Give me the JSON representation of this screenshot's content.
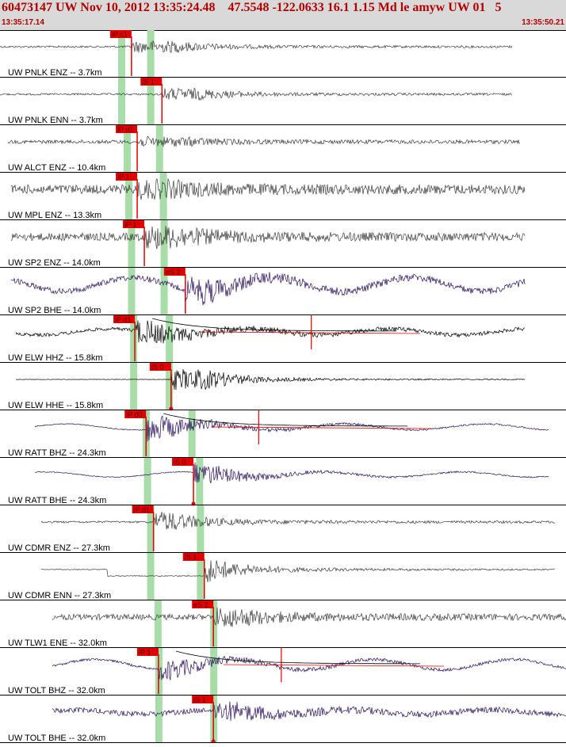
{
  "header": {
    "title": "60473147 UW Nov 10, 2012 13:35:24.48    47.5548 -122.0633 16.1 1.15 Md le amyw UW 01   5",
    "start_time": "13:35:17.14",
    "end_time": "13:35:50.21"
  },
  "colors": {
    "header_bg": "#d9d9d9",
    "header_text": "#b00000",
    "trace_dark": "#3c3c3c",
    "trace_purple": "#2a0f5c",
    "trace_black": "#000000",
    "pick": "#e00000",
    "pick_window": "#a8dca8",
    "divider": "#000000"
  },
  "traces": [
    {
      "label": "UW PNLK ENZ -- 3.7km",
      "style": "dark",
      "amp": 7,
      "noise": 0.35,
      "xs": 0,
      "xe": 646,
      "pick": {
        "label": "iP c1",
        "t": 0.2323,
        "type": "P"
      },
      "windows": [
        0.2142,
        0.2656
      ],
      "env": 5.5
    },
    {
      "label": "UW PNLK ENN -- 3.7km",
      "style": "dark",
      "amp": 7,
      "noise": 0.35,
      "xs": 0,
      "xe": 646,
      "pick": {
        "label": "iS 1",
        "t": 0.2861,
        "type": "S"
      },
      "windows": [
        0.2142,
        0.2656
      ],
      "env": 4.5
    },
    {
      "label": "UW ALCT ENZ -- 10.4km",
      "style": "dark",
      "amp": 6,
      "noise": 0.75,
      "xs": 10,
      "xe": 656,
      "pick": {
        "label": "iP d1",
        "t": 0.2424,
        "type": "P"
      },
      "windows": [
        0.2241,
        0.2811
      ],
      "env": 4.5
    },
    {
      "label": "UW MPL ENZ -- 13.3km",
      "style": "dark",
      "amp": 12,
      "noise": 0.95,
      "xs": 14,
      "xe": 662,
      "pick": {
        "label": "iP 1",
        "t": 0.2424,
        "type": "P"
      },
      "windows": [
        0.227,
        0.288
      ],
      "env": 2.5
    },
    {
      "label": "UW SP2 ENZ -- 14.0km",
      "style": "dark",
      "amp": 14,
      "noise": 0.7,
      "xs": 14,
      "xe": 662,
      "pick": {
        "label": "iP 1",
        "t": 0.255,
        "type": "P"
      },
      "windows": [
        0.2318,
        0.2893
      ],
      "env": 3.0
    },
    {
      "label": "UW SP2 BHE -- 14.0km",
      "style": "purple",
      "amp": 16,
      "noise": 0.45,
      "xs": 14,
      "xe": 662,
      "pick": {
        "label": "eS 2",
        "t": 0.3275,
        "type": "S"
      },
      "windows": [
        0.2318,
        0.2893
      ],
      "env": 2.5,
      "wave": 1
    },
    {
      "label": "UW ELW HHZ -- 15.8km",
      "style": "black",
      "amp": 14,
      "noise": 0.3,
      "xs": 20,
      "xe": 662,
      "pick": {
        "label": "iP d1",
        "t": 0.2382,
        "type": "P"
      },
      "windows": [
        0.2355,
        0.2985
      ],
      "env": 2.5,
      "wave": 0.5,
      "coda": true,
      "spike": 0.55
    },
    {
      "label": "UW ELW HHE -- 15.8km",
      "style": "black",
      "amp": 12,
      "noise": 0.05,
      "xs": 20,
      "xe": 662,
      "pick": {
        "label": "iS 0",
        "t": 0.3023,
        "type": "S"
      },
      "windows": [
        0.2355,
        0.2985
      ],
      "env": 5.0
    },
    {
      "label": "UW RATT BHZ -- 24.3km",
      "style": "purple",
      "amp": 14,
      "noise": 0.08,
      "xs": 44,
      "xe": 692,
      "pick": {
        "label": "iP d0",
        "t": 0.258,
        "type": "P"
      },
      "windows": [
        0.2575,
        0.3385
      ],
      "env": 3.0,
      "wave": 0.5,
      "coda": true,
      "spike": 0.457
    },
    {
      "label": "UW RATT BHE -- 24.3km",
      "style": "purple",
      "amp": 12,
      "noise": 0.08,
      "xs": 44,
      "xe": 692,
      "pick": {
        "label": "iS 0",
        "t": 0.3418,
        "type": "S"
      },
      "windows": [
        0.26,
        0.352
      ],
      "env": 3.0,
      "wave": 0.5
    },
    {
      "label": "UW CDMR ENZ -- 27.3km",
      "style": "dark",
      "amp": 12,
      "noise": 0.2,
      "xs": 52,
      "xe": 700,
      "pick": {
        "label": "iP d1",
        "t": 0.2712,
        "type": "P"
      },
      "windows": [
        0.2655,
        0.3535
      ],
      "env": 2.5
    },
    {
      "label": "UW CDMR ENN -- 27.3km",
      "style": "dark",
      "amp": 12,
      "noise": 0.1,
      "xs": 52,
      "xe": 700,
      "pick": {
        "label": "iS 1",
        "t": 0.361,
        "type": "S"
      },
      "windows": [
        0.2655,
        0.3535
      ],
      "env": 2.5,
      "step": true
    },
    {
      "label": "UW TLW1 ENE -- 32.0km",
      "style": "dark",
      "amp": 12,
      "noise": 0.6,
      "xs": 66,
      "xe": 714,
      "pick": {
        "label": "eS 2",
        "t": 0.377,
        "type": "S"
      },
      "windows": [
        0.2785,
        0.377
      ],
      "env": 2.5
    },
    {
      "label": "UW TOLT BHZ -- 32.0km",
      "style": "purple",
      "amp": 12,
      "noise": 0.25,
      "xs": 66,
      "xe": 714,
      "pick": {
        "label": "iP 1",
        "t": 0.28,
        "type": "P"
      },
      "windows": [
        0.28,
        0.377
      ],
      "env": 2.5,
      "wave": 1,
      "coda": true,
      "spike": 0.497
    },
    {
      "label": "UW TOLT BHE -- 32.0km",
      "style": "purple",
      "amp": 12,
      "noise": 0.55,
      "xs": 66,
      "xe": 714,
      "pick": {
        "label": "iS 1",
        "t": 0.377,
        "type": "S"
      },
      "windows": [
        0.28,
        0.377
      ],
      "env": 2.5,
      "wave": 0.4
    }
  ]
}
